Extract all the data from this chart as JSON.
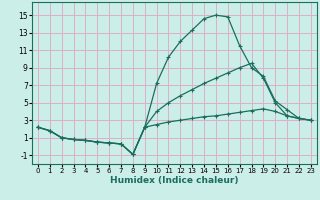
{
  "xlabel": "Humidex (Indice chaleur)",
  "bg_color": "#cceee8",
  "grid_color": "#ddb0c8",
  "line_color": "#1a6e5e",
  "xlim": [
    -0.5,
    23.5
  ],
  "ylim": [
    -2.0,
    16.5
  ],
  "xticks": [
    0,
    1,
    2,
    3,
    4,
    5,
    6,
    7,
    8,
    9,
    10,
    11,
    12,
    13,
    14,
    15,
    16,
    17,
    18,
    19,
    20,
    21,
    22,
    23
  ],
  "yticks": [
    -1,
    1,
    3,
    5,
    7,
    9,
    11,
    13,
    15
  ],
  "line1_x": [
    0,
    1,
    2,
    3,
    4,
    5,
    6,
    7,
    8,
    9,
    10,
    11,
    12,
    13,
    14,
    15,
    16,
    17,
    18,
    19,
    20,
    21,
    22,
    23
  ],
  "line1_y": [
    2.2,
    1.8,
    1.0,
    0.8,
    0.7,
    0.5,
    0.4,
    0.3,
    -0.9,
    2.2,
    7.2,
    10.2,
    12.0,
    13.3,
    14.6,
    15.0,
    14.8,
    11.5,
    9.0,
    8.0,
    5.2,
    4.2,
    3.2,
    3.0
  ],
  "line2_x": [
    0,
    1,
    2,
    3,
    4,
    5,
    6,
    7,
    8,
    9,
    10,
    11,
    12,
    13,
    14,
    15,
    16,
    17,
    18,
    19,
    20,
    21,
    22,
    23
  ],
  "line2_y": [
    2.2,
    1.8,
    1.0,
    0.8,
    0.7,
    0.5,
    0.4,
    0.3,
    -0.9,
    2.2,
    4.0,
    5.0,
    5.8,
    6.5,
    7.2,
    7.8,
    8.4,
    9.0,
    9.5,
    7.8,
    5.0,
    3.5,
    3.2,
    3.0
  ],
  "line3_x": [
    0,
    1,
    2,
    3,
    4,
    5,
    6,
    7,
    8,
    9,
    10,
    11,
    12,
    13,
    14,
    15,
    16,
    17,
    18,
    19,
    20,
    21,
    22,
    23
  ],
  "line3_y": [
    2.2,
    1.8,
    1.0,
    0.8,
    0.7,
    0.5,
    0.4,
    0.3,
    -0.9,
    2.2,
    2.5,
    2.8,
    3.0,
    3.2,
    3.4,
    3.5,
    3.7,
    3.9,
    4.1,
    4.3,
    4.0,
    3.5,
    3.2,
    3.0
  ]
}
